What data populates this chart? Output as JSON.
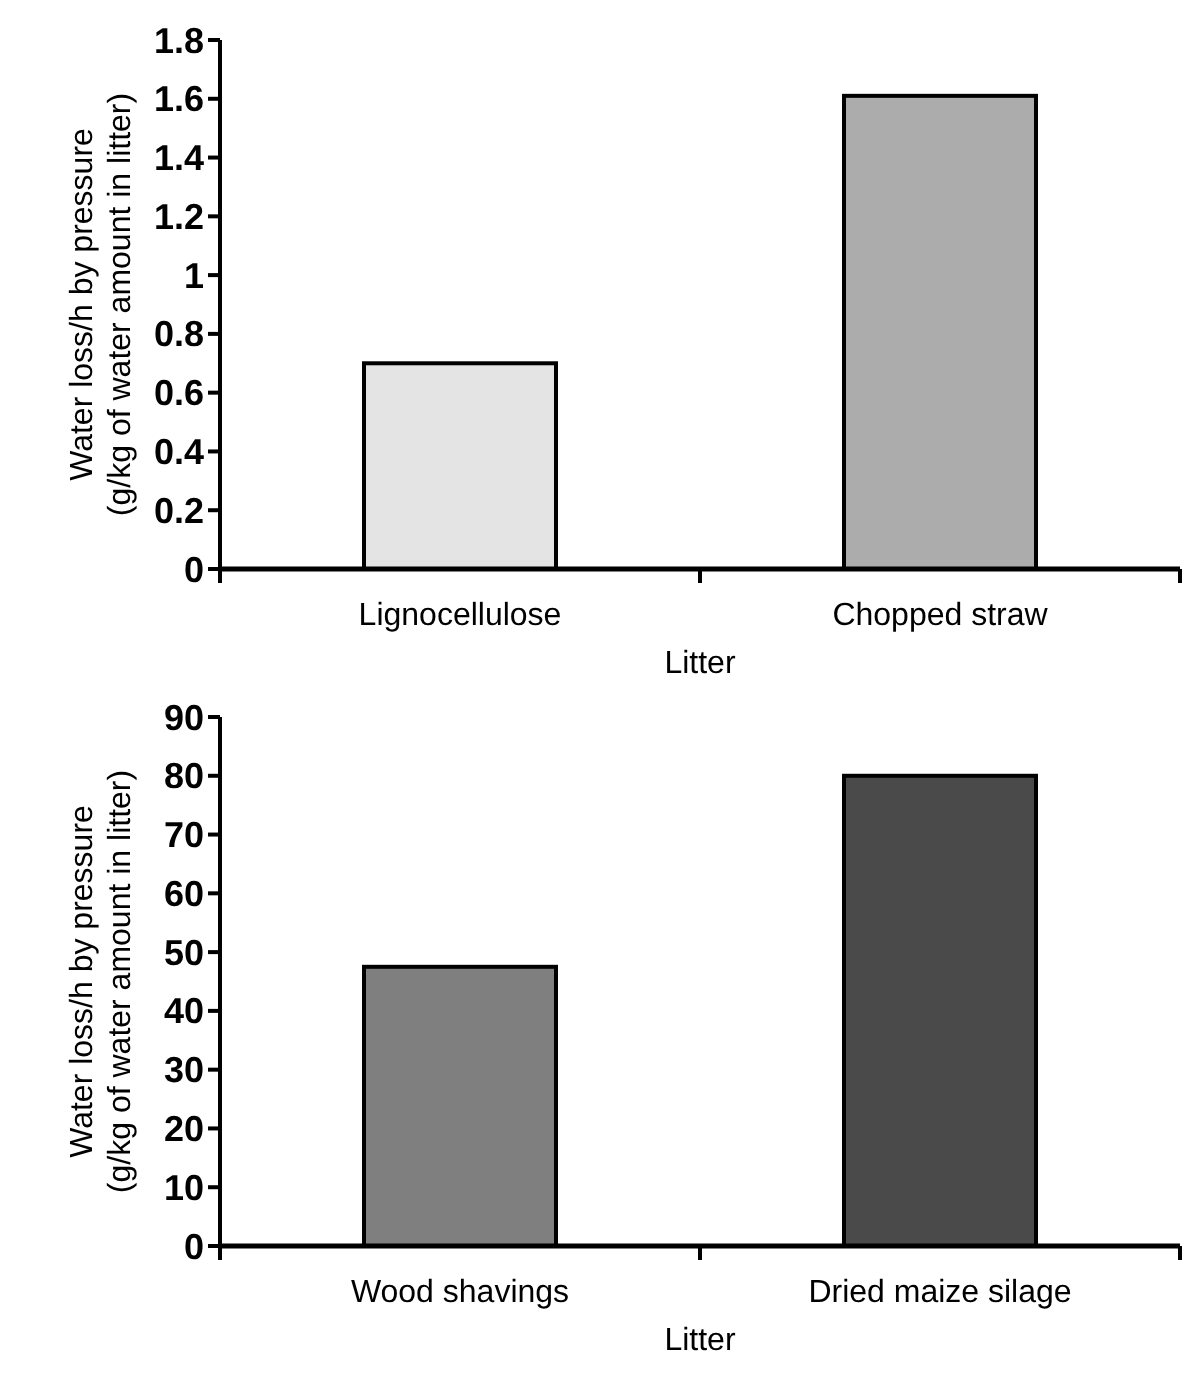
{
  "chart_data": [
    {
      "type": "bar",
      "xlabel": "Litter",
      "ylabel": "Water loss/h by pressure\n(g/kg of water amount in litter)",
      "categories": [
        "Lignocellulose",
        "Chopped straw"
      ],
      "values": [
        0.7,
        1.61
      ],
      "colors": [
        "#e4e4e4",
        "#acacac"
      ],
      "ylim": [
        0,
        1.8
      ],
      "yticks": [
        0,
        {
          "value": 0.2,
          "label": "0.2"
        },
        {
          "value": 0.4,
          "label": "0.4"
        },
        {
          "value": 0.6,
          "label": "0.6"
        },
        {
          "value": 0.8,
          "label": "0.8"
        },
        1,
        {
          "value": 1.2,
          "label": "1.2"
        },
        {
          "value": 1.4,
          "label": "1.4"
        },
        {
          "value": 1.6,
          "label": "1.6"
        },
        {
          "value": 1.8,
          "label": "1.8"
        }
      ]
    },
    {
      "type": "bar",
      "xlabel": "Litter",
      "ylabel": "Water loss/h by pressure\n(g/kg of water amount in litter)",
      "categories": [
        "Wood shavings",
        "Dried maize silage"
      ],
      "values": [
        47.5,
        80
      ],
      "colors": [
        "#7f7f7f",
        "#4a4a4a"
      ],
      "ylim": [
        0,
        90
      ],
      "yticks": [
        0,
        10,
        20,
        30,
        40,
        50,
        60,
        70,
        80,
        90
      ]
    }
  ]
}
